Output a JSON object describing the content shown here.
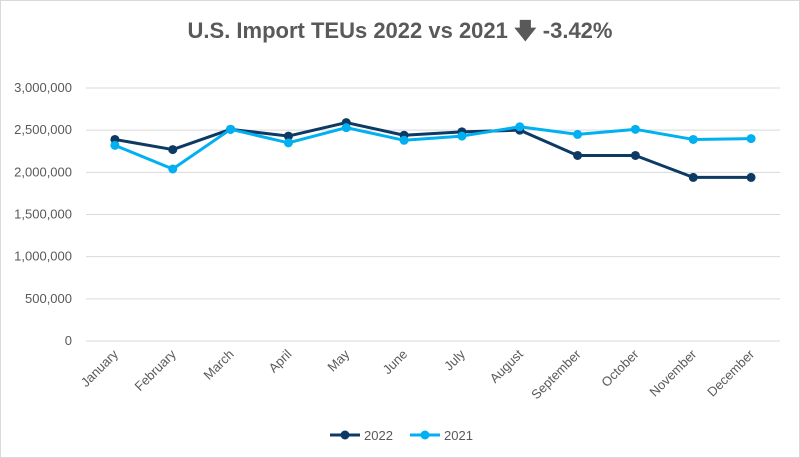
{
  "chart_data": {
    "type": "line",
    "title": "U.S. Import TEUs 2022 vs 2021",
    "title_icon": "arrow-down-icon",
    "title_change": "-3.42%",
    "categories": [
      "January",
      "February",
      "March",
      "April",
      "May",
      "June",
      "July",
      "August",
      "September",
      "October",
      "November",
      "December"
    ],
    "series": [
      {
        "name": "2022",
        "color": "#0d3a64",
        "values": [
          2390000,
          2270000,
          2510000,
          2430000,
          2590000,
          2440000,
          2480000,
          2500000,
          2200000,
          2200000,
          1940000,
          1940000
        ]
      },
      {
        "name": "2021",
        "color": "#00b0f0",
        "values": [
          2320000,
          2040000,
          2510000,
          2350000,
          2530000,
          2380000,
          2430000,
          2540000,
          2450000,
          2510000,
          2390000,
          2400000
        ]
      }
    ],
    "ylim": [
      0,
      3000000
    ],
    "yticks": [
      "0",
      "500,000",
      "1,000,000",
      "1,500,000",
      "2,000,000",
      "2,500,000",
      "3,000,000"
    ],
    "grid": true,
    "legend": "bottom"
  }
}
